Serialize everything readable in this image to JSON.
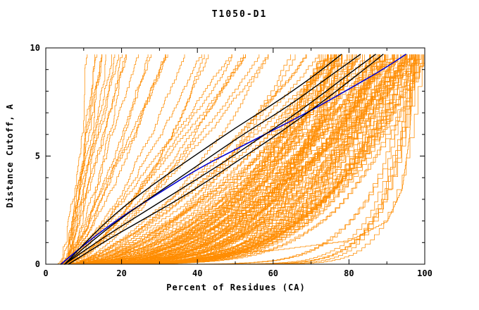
{
  "chart_data": {
    "type": "line",
    "title": "T1050-D1",
    "xlabel": "Percent of Residues (CA)",
    "ylabel": "Distance Cutoff, A",
    "xlim": [
      0,
      100
    ],
    "ylim": [
      0,
      10
    ],
    "xticks": {
      "major": [
        0,
        20,
        40,
        60,
        80,
        100
      ],
      "minor_step": 10
    },
    "yticks": {
      "major": [
        0,
        5,
        10
      ],
      "minor_step": 1
    },
    "grid": false,
    "legend": "none",
    "colors": {
      "orange": "#FF8C00",
      "black": "#000000",
      "blue": "#0000D0",
      "axis": "#000000",
      "background": "#FFFFFF"
    },
    "orange_curves": {
      "description": "Dense bundle of per-model GDT cumulative curves (orange), procedurally regenerated from envelope parameters",
      "seed": 1337,
      "x_start_range": [
        3,
        7
      ],
      "y_top": 9.7,
      "samples_per_curve": 80,
      "wiggle": 0.55,
      "groups": [
        {
          "name": "steep-left-fan",
          "count": 20,
          "x_end_range": [
            9,
            38
          ],
          "power_range": [
            0.8,
            1.5
          ]
        },
        {
          "name": "mid-band",
          "count": 15,
          "x_end_range": [
            40,
            70
          ],
          "power_range": [
            1.1,
            2.2
          ]
        },
        {
          "name": "main-band",
          "count": 110,
          "x_end_range": [
            72,
            100
          ],
          "power_range": [
            1.3,
            5.0
          ]
        },
        {
          "name": "right-vertical",
          "count": 8,
          "x_end_range": [
            96,
            100
          ],
          "power_range": [
            6.0,
            14.0
          ]
        }
      ]
    },
    "series": [
      {
        "name": "low-late-riser-orange",
        "color": "#FF8C00",
        "width": 0.8,
        "step": true,
        "points": [
          [
            5,
            0
          ],
          [
            30,
            0.3
          ],
          [
            60,
            0.65
          ],
          [
            80,
            1.1
          ],
          [
            90,
            2.0
          ],
          [
            94,
            3.5
          ],
          [
            96,
            6.0
          ],
          [
            97,
            9.0
          ],
          [
            97.5,
            9.7
          ]
        ]
      },
      {
        "name": "blue-model",
        "color": "#0000D0",
        "width": 1.6,
        "step": false,
        "points": [
          [
            4,
            0
          ],
          [
            10,
            0.9
          ],
          [
            20,
            2.2
          ],
          [
            30,
            3.3
          ],
          [
            40,
            4.4
          ],
          [
            50,
            5.3
          ],
          [
            60,
            6.2
          ],
          [
            70,
            7.1
          ],
          [
            80,
            8.1
          ],
          [
            88,
            8.9
          ],
          [
            95,
            9.7
          ]
        ]
      },
      {
        "name": "black-model-1",
        "color": "#000000",
        "width": 1.4,
        "step": false,
        "points": [
          [
            5,
            0
          ],
          [
            12,
            1.3
          ],
          [
            20,
            2.6
          ],
          [
            30,
            3.9
          ],
          [
            40,
            5.1
          ],
          [
            50,
            6.3
          ],
          [
            60,
            7.4
          ],
          [
            70,
            8.6
          ],
          [
            78,
            9.7
          ]
        ]
      },
      {
        "name": "black-model-2",
        "color": "#000000",
        "width": 1.4,
        "step": false,
        "points": [
          [
            5,
            0
          ],
          [
            13,
            1.2
          ],
          [
            22,
            2.4
          ],
          [
            32,
            3.6
          ],
          [
            42,
            4.8
          ],
          [
            52,
            6.0
          ],
          [
            64,
            7.3
          ],
          [
            75,
            8.7
          ],
          [
            83,
            9.7
          ]
        ]
      },
      {
        "name": "black-model-3",
        "color": "#000000",
        "width": 1.4,
        "step": false,
        "points": [
          [
            5,
            0
          ],
          [
            14,
            1.1
          ],
          [
            24,
            2.2
          ],
          [
            35,
            3.4
          ],
          [
            46,
            4.6
          ],
          [
            57,
            5.9
          ],
          [
            68,
            7.2
          ],
          [
            80,
            8.8
          ],
          [
            87,
            9.7
          ]
        ]
      },
      {
        "name": "black-model-4",
        "color": "#000000",
        "width": 1.4,
        "step": false,
        "points": [
          [
            6,
            0
          ],
          [
            15,
            1.0
          ],
          [
            26,
            2.1
          ],
          [
            38,
            3.3
          ],
          [
            50,
            4.7
          ],
          [
            62,
            6.1
          ],
          [
            73,
            7.5
          ],
          [
            84,
            9.0
          ],
          [
            89,
            9.7
          ]
        ]
      }
    ]
  }
}
